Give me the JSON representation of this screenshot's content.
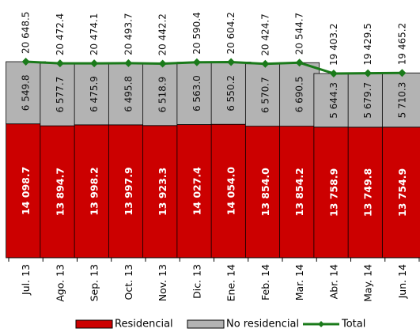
{
  "chart_data": {
    "type": "bar",
    "stacked": true,
    "categories": [
      "Jul. 13",
      "Ago. 13",
      "Sep. 13",
      "Oct. 13",
      "Nov. 13",
      "Dic. 13",
      "Ene. 14",
      "Feb. 14",
      "Mar. 14",
      "Abr. 14",
      "May. 14",
      "Jun. 14"
    ],
    "series": [
      {
        "name": "Residencial",
        "color": "#cc0000",
        "values": [
          14098.7,
          13894.7,
          13998.2,
          13997.9,
          13923.3,
          14027.4,
          14054.0,
          13854.0,
          13854.2,
          13758.9,
          13749.8,
          13754.9
        ],
        "labels": [
          "14 098.7",
          "13 894.7",
          "13 998.2",
          "13 997.9",
          "13 923.3",
          "14 027.4",
          "14 054.0",
          "13 854.0",
          "13 854.2",
          "13 758.9",
          "13 749.8",
          "13 754.9"
        ]
      },
      {
        "name": "No residencial",
        "color": "#b3b3b3",
        "values": [
          6549.8,
          6577.7,
          6475.9,
          6495.8,
          6518.9,
          6563.0,
          6550.2,
          6570.7,
          6690.5,
          5644.3,
          5679.7,
          5710.3
        ],
        "labels": [
          "6 549.8",
          "6 577.7",
          "6 475.9",
          "6 495.8",
          "6 518.9",
          "6 563.0",
          "6 550.2",
          "6 570.7",
          "6 690.5",
          "5 644.3",
          "5 679.7",
          "5 710.3"
        ]
      },
      {
        "name": "Total",
        "type": "line",
        "color": "#1a7a1a",
        "values": [
          20648.5,
          20472.4,
          20474.1,
          20493.7,
          20442.2,
          20590.4,
          20604.2,
          20424.7,
          20544.7,
          19403.2,
          19429.5,
          19465.2
        ],
        "labels": [
          "20 648.5",
          "20 472.4",
          "20 474.1",
          "20 493.7",
          "20 442.2",
          "20 590.4",
          "20 604.2",
          "20 424.7",
          "20 544.7",
          "19 403.2",
          "19 429.5",
          "19 465.2"
        ]
      }
    ],
    "ylim": [
      0,
      21000
    ],
    "grid": false,
    "legend": "bottom"
  }
}
